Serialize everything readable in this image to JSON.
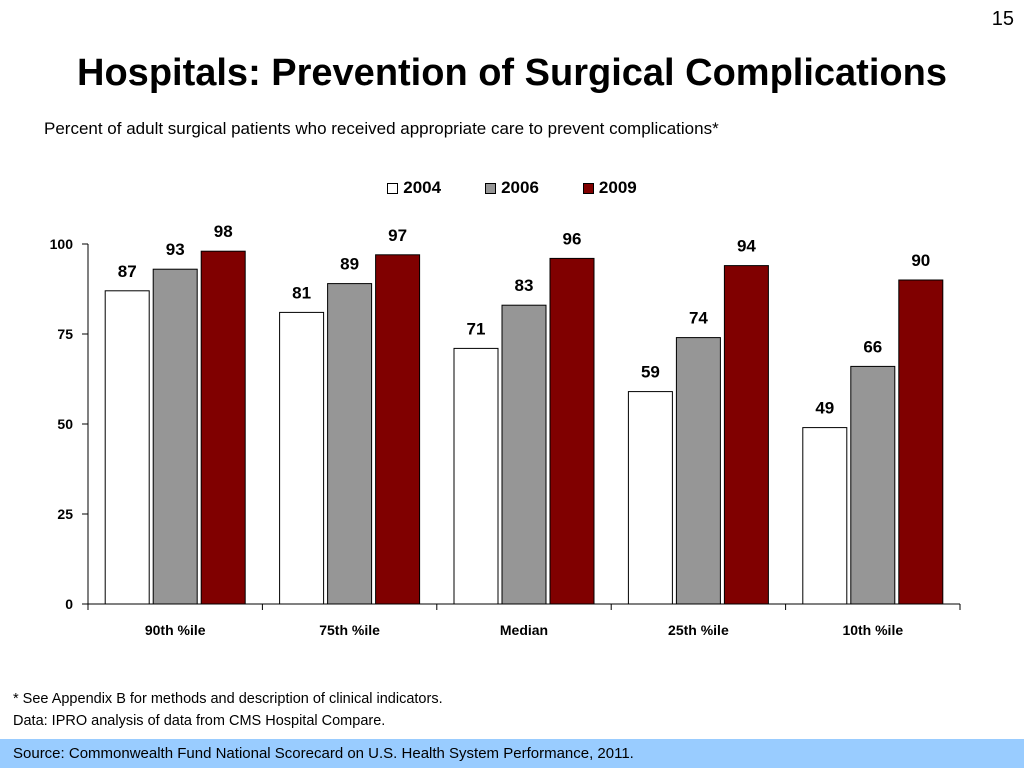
{
  "page_number": "15",
  "title": "Hospitals: Prevention of Surgical Complications",
  "subtitle": "Percent of adult surgical patients who received appropriate care to prevent complications*",
  "footnotes": {
    "note": "* See Appendix B for methods and description of clinical indicators.",
    "data": "Data: IPRO analysis of data from CMS Hospital Compare."
  },
  "source": "Source: Commonwealth Fund National Scorecard on U.S. Health System Performance, 2011.",
  "colors": {
    "source_bar": "#99ccff"
  },
  "chart_data": {
    "type": "bar",
    "categories": [
      "90th %ile",
      "75th %ile",
      "Median",
      "25th %ile",
      "10th %ile"
    ],
    "series": [
      {
        "name": "2004",
        "color": "#ffffff",
        "values": [
          87,
          81,
          71,
          59,
          49
        ]
      },
      {
        "name": "2006",
        "color": "#969696",
        "values": [
          93,
          89,
          83,
          74,
          66
        ]
      },
      {
        "name": "2009",
        "color": "#800000",
        "values": [
          98,
          97,
          96,
          94,
          90
        ]
      }
    ],
    "yticks": [
      0,
      25,
      50,
      75,
      100
    ],
    "ylim": [
      0,
      100
    ],
    "xlabel": "",
    "ylabel": "",
    "legend_position": "top-center",
    "grid": false,
    "data_labels": true
  }
}
